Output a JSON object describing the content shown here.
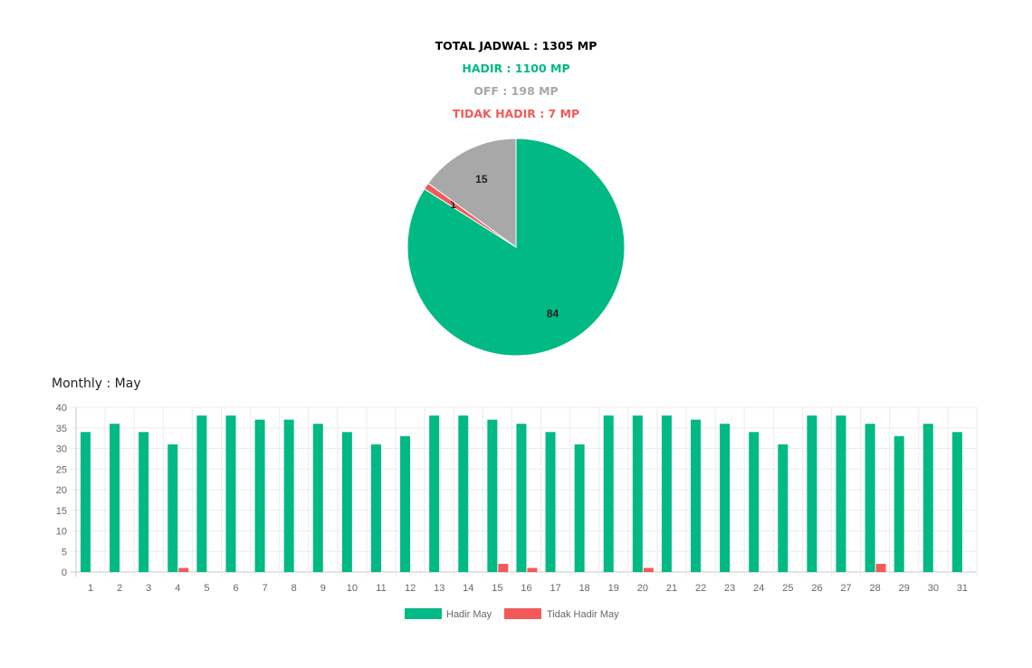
{
  "summary": {
    "total": "TOTAL JADWAL : 1305 MP",
    "hadir": "HADIR : 1100 MP",
    "off": "OFF : 198 MP",
    "tidak_hadir": "TIDAK HADIR : 7 MP"
  },
  "colors": {
    "hadir": "#00b984",
    "off": "#a8a8a8",
    "tidak_hadir": "#f25a5a"
  },
  "monthly_label": "Monthly : May",
  "chart_data": [
    {
      "type": "pie",
      "slices": [
        {
          "key": "hadir",
          "value": 84,
          "label": "84"
        },
        {
          "key": "tidak_hadir",
          "value": 1,
          "label": "1"
        },
        {
          "key": "off",
          "value": 15,
          "label": "15"
        }
      ],
      "start": "12 o'clock",
      "direction": "clockwise"
    },
    {
      "type": "bar",
      "title": "Monthly : May",
      "categories": [
        "1",
        "2",
        "3",
        "4",
        "5",
        "6",
        "7",
        "8",
        "9",
        "10",
        "11",
        "12",
        "13",
        "14",
        "15",
        "16",
        "17",
        "18",
        "19",
        "20",
        "21",
        "22",
        "23",
        "24",
        "25",
        "26",
        "27",
        "28",
        "29",
        "30",
        "31"
      ],
      "series": [
        {
          "name": "Hadir May",
          "color": "#00b984",
          "values": [
            34,
            36,
            34,
            31,
            38,
            38,
            37,
            37,
            36,
            34,
            31,
            33,
            38,
            38,
            37,
            36,
            34,
            31,
            38,
            38,
            38,
            37,
            36,
            34,
            31,
            38,
            38,
            36,
            33,
            36,
            34
          ]
        },
        {
          "name": "Tidak Hadir May",
          "color": "#f25a5a",
          "values": [
            0,
            0,
            0,
            1,
            0,
            0,
            0,
            0,
            0,
            0,
            0,
            0,
            0,
            0,
            2,
            1,
            0,
            0,
            0,
            1,
            0,
            0,
            0,
            0,
            0,
            0,
            0,
            2,
            0,
            0,
            0
          ]
        }
      ],
      "yticks": [
        "0",
        "5",
        "10",
        "15",
        "20",
        "25",
        "30",
        "35",
        "40"
      ],
      "ylim": [
        0,
        40
      ],
      "grid": true,
      "legend": "bottom"
    }
  ]
}
